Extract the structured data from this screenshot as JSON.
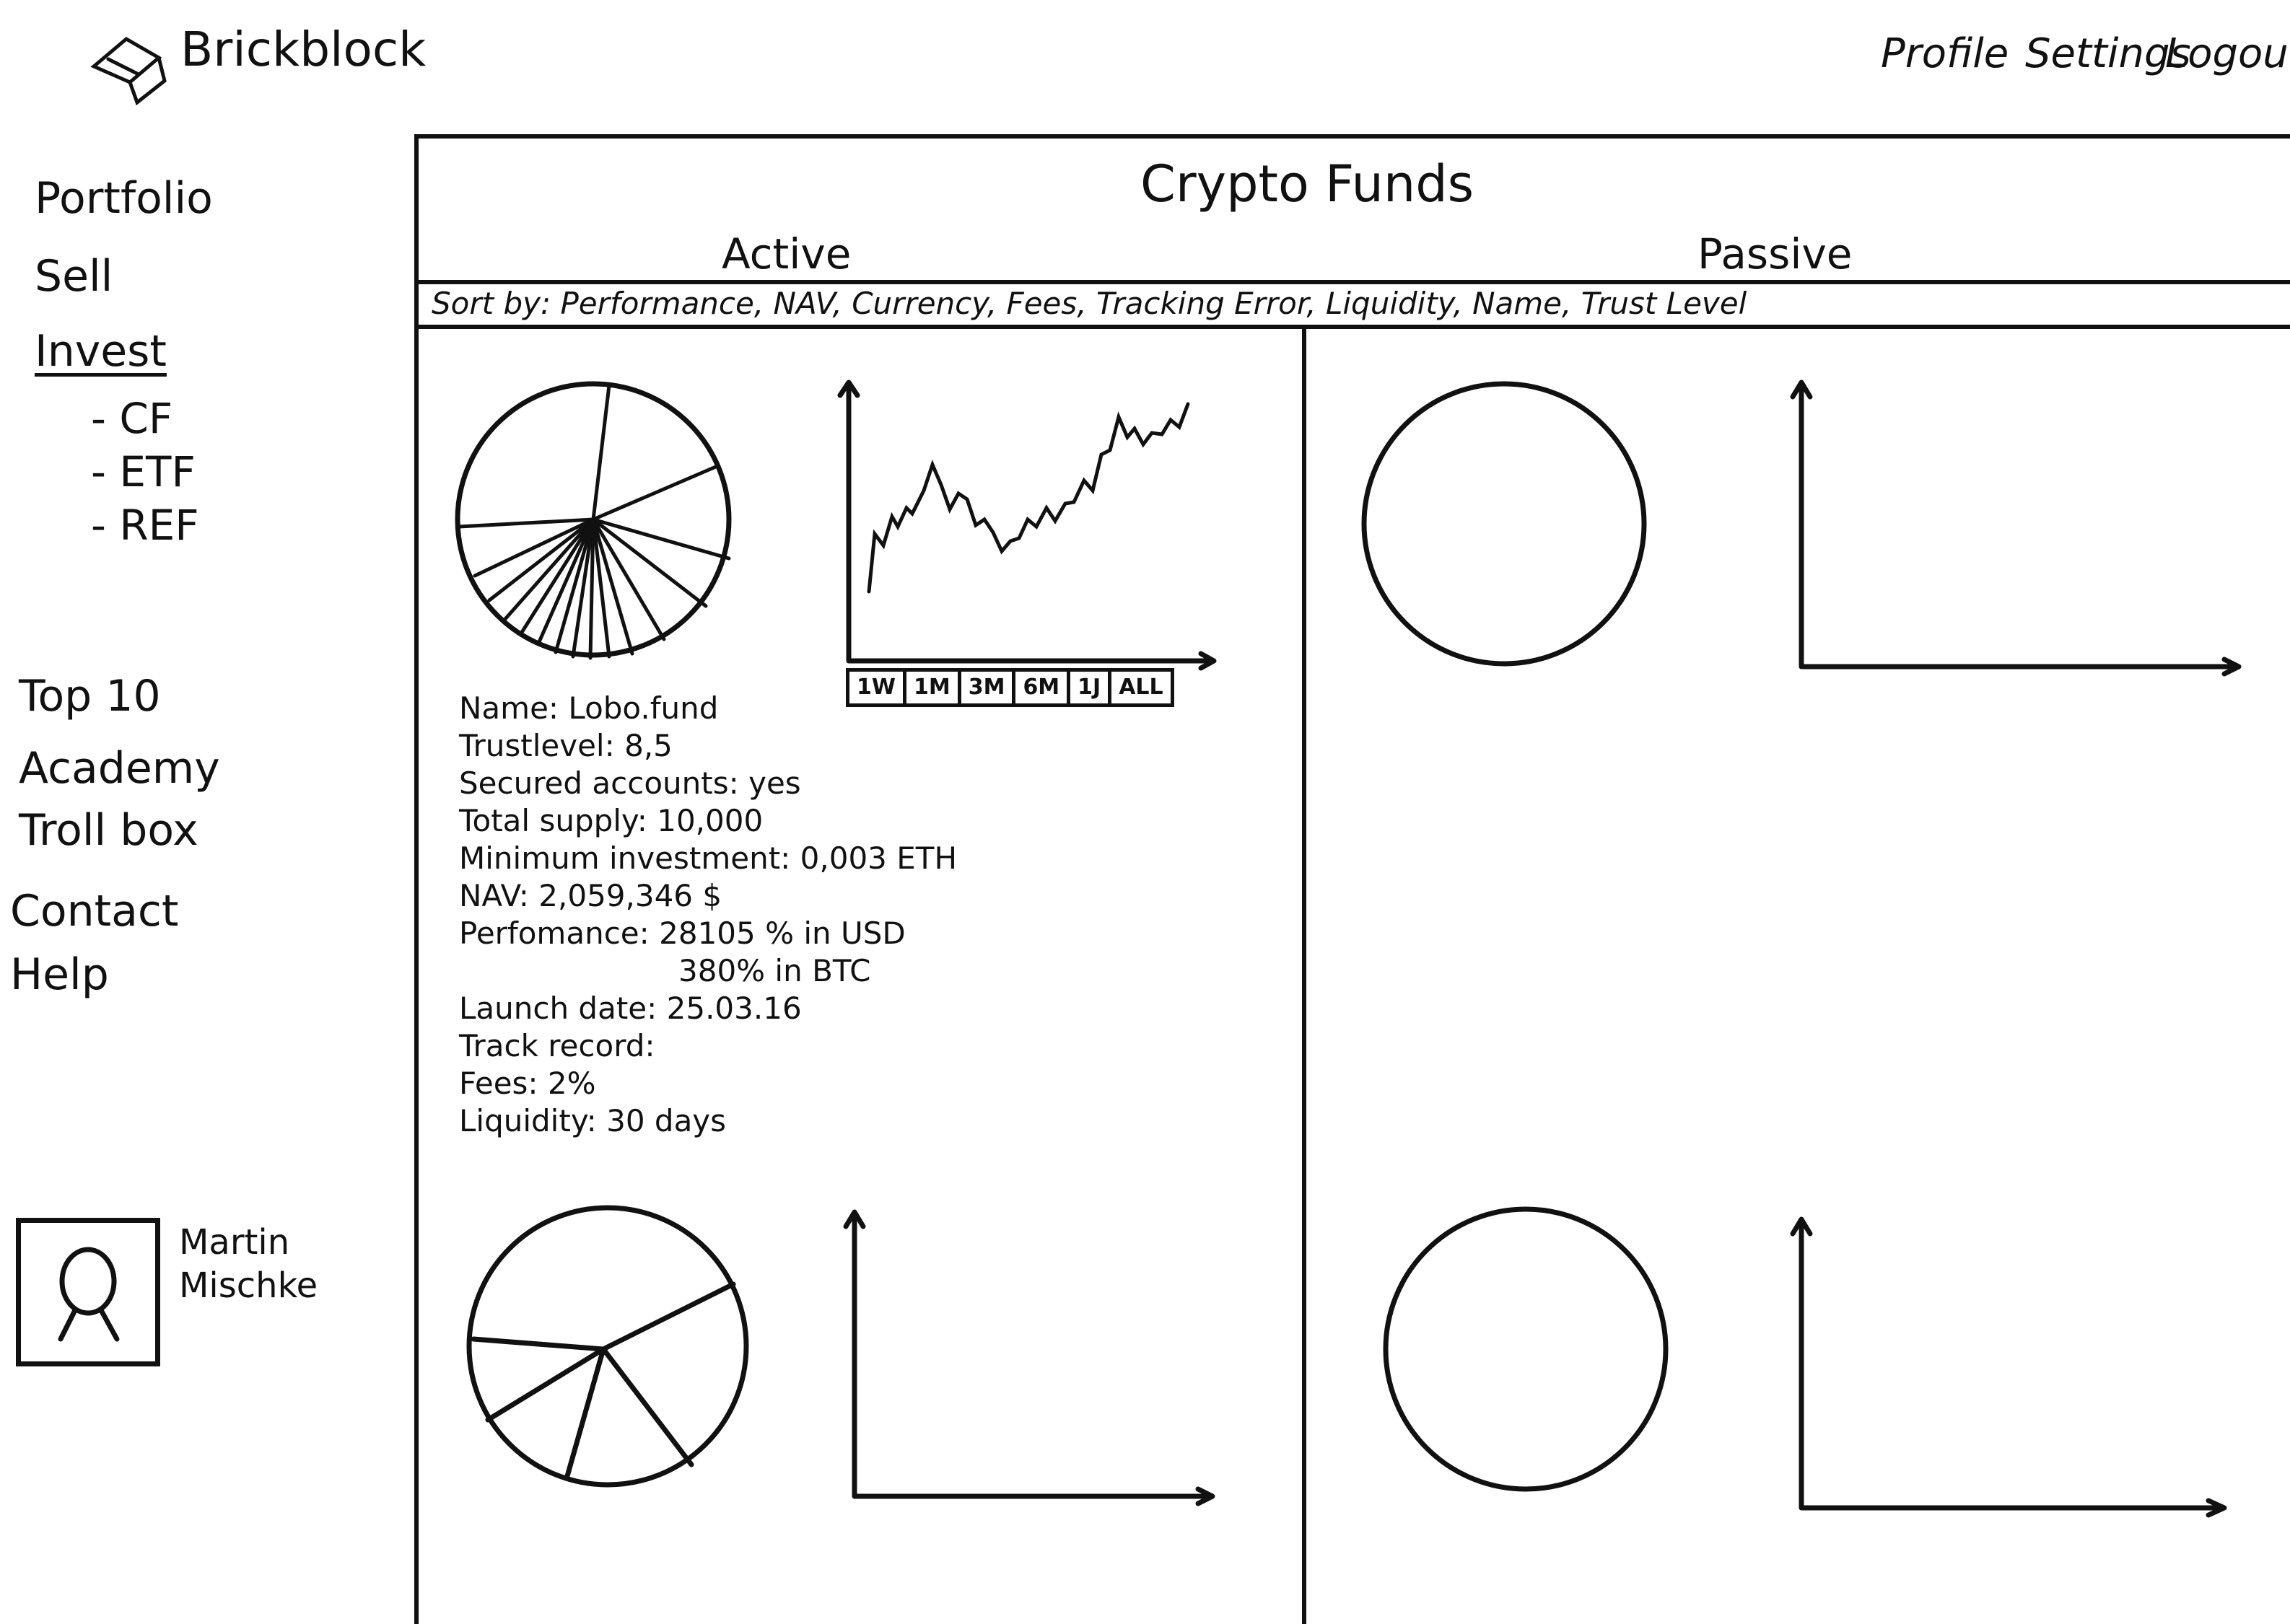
{
  "header": {
    "brand": "Brickblock",
    "nav": [
      "Profile",
      "Settings",
      "Logout"
    ]
  },
  "sidebar": {
    "items": [
      "Portfolio",
      "Sell",
      "Invest"
    ],
    "invest_sub": [
      "- CF",
      "- ETF",
      "- REF"
    ],
    "secondary": [
      "Top 10",
      "Academy",
      "Troll box"
    ],
    "tertiary": [
      "Contact",
      "Help"
    ],
    "user": {
      "first_name": "Martin",
      "last_name": "Mischke"
    }
  },
  "main": {
    "title": "Crypto Funds",
    "tabs": [
      "Active",
      "Passive"
    ],
    "sort_label": "Sort by:",
    "sort_options": "Performance, NAV, Currency, Fees, Tracking Error, Liquidity, Name, Trust Level",
    "range_buttons": [
      "1W",
      "1M",
      "3M",
      "6M",
      "1J",
      "ALL"
    ],
    "fund": {
      "name": "Name: Lobo.fund",
      "trustlevel": "Trustlevel: 8,5",
      "secured": "Secured accounts: yes",
      "supply": "Total supply: 10,000",
      "min_investment": "Minimum investment: 0,003 ETH",
      "nav": "NAV: 2,059,346 $",
      "performance_usd": "Perfomance: 28105 % in USD",
      "performance_btc": "380% in BTC",
      "launch": "Launch date: 25.03.16",
      "track_record": "Track record:",
      "fees": "Fees: 2%",
      "liquidity": "Liquidity: 30 days"
    }
  },
  "icons": {
    "logo": "brick-logo-icon",
    "avatar": "person-avatar-icon"
  },
  "colors": {
    "ink": "#111111",
    "paper": "#ffffff"
  }
}
